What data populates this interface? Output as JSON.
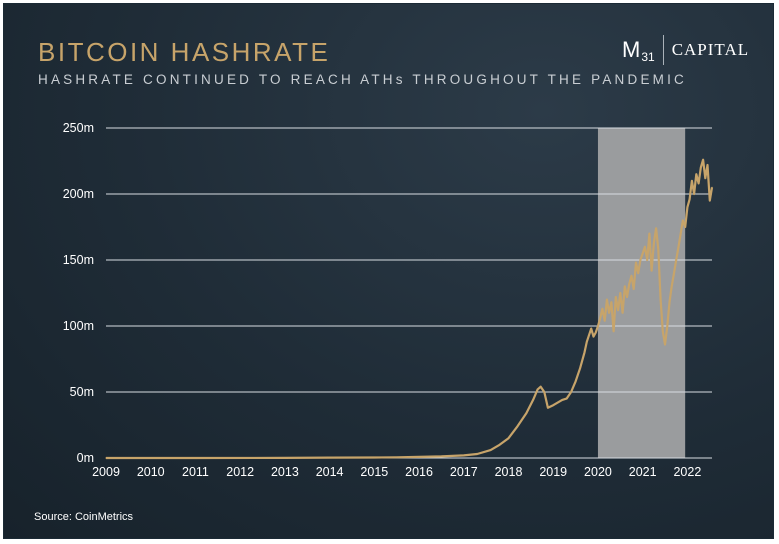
{
  "header": {
    "title": "BITCOIN HASHRATE",
    "subtitle": "HASHRATE CONTINUED TO REACH ATHs THROUGHOUT THE PANDEMIC"
  },
  "logo": {
    "m": "M",
    "sub": "31",
    "capital": "CAPITAL"
  },
  "footer": {
    "source": "Source: CoinMetrics"
  },
  "colors": {
    "line": "#c7a46a",
    "highlight": "#9a9c9e",
    "grid": "#d8dde2"
  },
  "chart_data": {
    "type": "line",
    "title": "BITCOIN HASHRATE",
    "xlim": [
      2009.0,
      2022.55
    ],
    "ylim": [
      0,
      250
    ],
    "x_ticks": [
      2009,
      2010,
      2011,
      2012,
      2013,
      2014,
      2015,
      2016,
      2017,
      2018,
      2019,
      2020,
      2021,
      2022
    ],
    "x_tick_labels": [
      "2009",
      "2010",
      "2011",
      "2012",
      "2013",
      "2014",
      "2015",
      "2016",
      "2017",
      "2018",
      "2019",
      "2020",
      "2021",
      "2022"
    ],
    "y_ticks": [
      0,
      50,
      100,
      150,
      200,
      250
    ],
    "y_tick_labels": [
      "0m",
      "50m",
      "100m",
      "150m",
      "200m",
      "250m"
    ],
    "grid": "horizontal",
    "highlight_range": [
      2020.0,
      2021.95
    ],
    "series": [
      {
        "x": [
          2009.0,
          2011.0,
          2013.0,
          2014.0,
          2015.0,
          2015.5,
          2016.0,
          2016.5,
          2017.0,
          2017.3,
          2017.6,
          2017.8,
          2018.0,
          2018.2,
          2018.4,
          2018.55,
          2018.65,
          2018.72,
          2018.8,
          2018.88,
          2019.0,
          2019.1,
          2019.2,
          2019.3,
          2019.4,
          2019.5,
          2019.6,
          2019.7,
          2019.75,
          2019.8,
          2019.85,
          2019.9,
          2019.95,
          2020.0,
          2020.05,
          2020.1,
          2020.15,
          2020.2,
          2020.25,
          2020.3,
          2020.35,
          2020.4,
          2020.45,
          2020.5,
          2020.55,
          2020.6,
          2020.65,
          2020.7,
          2020.75,
          2020.8,
          2020.85,
          2020.9,
          2020.95,
          2021.0,
          2021.05,
          2021.1,
          2021.15,
          2021.2,
          2021.25,
          2021.3,
          2021.35,
          2021.4,
          2021.45,
          2021.5,
          2021.55,
          2021.6,
          2021.65,
          2021.7,
          2021.75,
          2021.8,
          2021.85,
          2021.9,
          2021.95,
          2022.0,
          2022.05,
          2022.1,
          2022.15,
          2022.2,
          2022.25,
          2022.3,
          2022.35,
          2022.4,
          2022.45,
          2022.5,
          2022.55
        ],
        "y": [
          0,
          0,
          0.1,
          0.3,
          0.4,
          0.5,
          0.8,
          1.2,
          2,
          3,
          6,
          10,
          15,
          24,
          34,
          44,
          52,
          54,
          50,
          38,
          40,
          42,
          44,
          45,
          50,
          58,
          68,
          80,
          88,
          93,
          98,
          92,
          95,
          100,
          106,
          113,
          104,
          120,
          110,
          118,
          96,
          122,
          112,
          125,
          110,
          130,
          122,
          132,
          138,
          128,
          148,
          140,
          150,
          155,
          160,
          150,
          170,
          142,
          163,
          174,
          158,
          120,
          96,
          86,
          100,
          118,
          130,
          140,
          150,
          160,
          170,
          180,
          175,
          190,
          196,
          210,
          200,
          215,
          208,
          220,
          226,
          212,
          222,
          195,
          205
        ]
      }
    ]
  }
}
